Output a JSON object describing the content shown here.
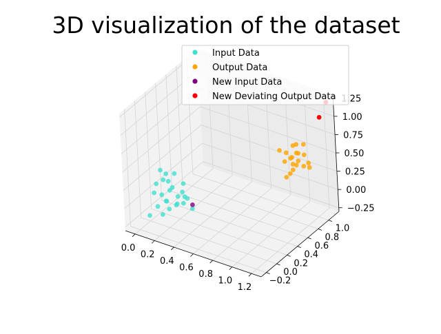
{
  "chart_data": {
    "type": "scatter",
    "projection": "3d",
    "title": "3D visualization of the dataset",
    "xlabel": "",
    "ylabel": "",
    "zlabel": "",
    "xlim": [
      -0.1,
      1.3
    ],
    "ylim": [
      -0.3,
      1.2
    ],
    "zlim": [
      -0.3,
      1.3
    ],
    "x_ticks": [
      "0.0",
      "0.2",
      "0.4",
      "0.6",
      "0.8",
      "1.0",
      "1.2"
    ],
    "y_ticks": [
      "−0.2",
      "0.0",
      "0.2",
      "0.4",
      "0.6",
      "0.8",
      "1.0"
    ],
    "z_ticks": [
      "−0.25",
      "0.00",
      "0.25",
      "0.50",
      "0.75",
      "1.00",
      "1.25"
    ],
    "grid": true,
    "legend_position": "top-right",
    "series": [
      {
        "name": "Input Data",
        "color": "#40e0d0",
        "points": [
          [
            0.05,
            0.05,
            0.2
          ],
          [
            0.08,
            -0.05,
            0.15
          ],
          [
            0.12,
            0.02,
            0.1
          ],
          [
            0.15,
            0.1,
            0.25
          ],
          [
            0.18,
            0.0,
            0.05
          ],
          [
            0.2,
            0.08,
            0.2
          ],
          [
            0.22,
            -0.08,
            0.12
          ],
          [
            0.25,
            0.05,
            0.0
          ],
          [
            0.28,
            0.12,
            0.15
          ],
          [
            0.3,
            -0.02,
            0.08
          ],
          [
            0.1,
            0.15,
            0.3
          ],
          [
            0.14,
            -0.1,
            0.02
          ],
          [
            0.26,
            0.18,
            0.22
          ],
          [
            0.32,
            0.06,
            0.05
          ],
          [
            0.2,
            -0.12,
            -0.05
          ],
          [
            0.06,
            0.12,
            0.35
          ],
          [
            0.16,
            0.2,
            0.3
          ],
          [
            0.24,
            -0.04,
            0.25
          ],
          [
            0.34,
            0.1,
            0.1
          ],
          [
            0.18,
            0.04,
            -0.08
          ],
          [
            0.08,
            -0.15,
            -0.1
          ],
          [
            0.36,
            0.02,
            0.18
          ],
          [
            0.22,
            0.14,
            0.05
          ],
          [
            0.12,
            0.06,
            0.28
          ],
          [
            0.4,
            0.08,
            0.0
          ]
        ]
      },
      {
        "name": "Output Data",
        "color": "#ffa500",
        "points": [
          [
            0.9,
            0.95,
            0.35
          ],
          [
            0.95,
            1.0,
            0.4
          ],
          [
            1.0,
            0.92,
            0.3
          ],
          [
            1.05,
            1.05,
            0.45
          ],
          [
            0.92,
            1.08,
            0.5
          ],
          [
            0.98,
            0.9,
            0.25
          ],
          [
            1.08,
            0.98,
            0.35
          ],
          [
            0.88,
            1.02,
            0.42
          ],
          [
            1.02,
            1.1,
            0.55
          ],
          [
            0.95,
            0.88,
            0.2
          ],
          [
            1.1,
            1.05,
            0.3
          ],
          [
            0.85,
            0.95,
            0.48
          ],
          [
            1.0,
            1.0,
            0.6
          ],
          [
            0.93,
            1.12,
            0.38
          ],
          [
            1.06,
            0.92,
            0.45
          ],
          [
            0.97,
            1.04,
            0.28
          ],
          [
            1.04,
            0.96,
            0.52
          ],
          [
            0.9,
            1.06,
            0.33
          ],
          [
            1.12,
            1.0,
            0.4
          ],
          [
            0.99,
            0.94,
            0.36
          ]
        ]
      },
      {
        "name": "New Input Data",
        "color": "#800080",
        "points": [
          [
            0.38,
            0.12,
            0.02
          ]
        ]
      },
      {
        "name": "New Deviating Output Data",
        "color": "#ff0000",
        "points": [
          [
            1.25,
            1.15,
            1.2
          ],
          [
            1.2,
            1.1,
            1.0
          ]
        ]
      }
    ]
  }
}
